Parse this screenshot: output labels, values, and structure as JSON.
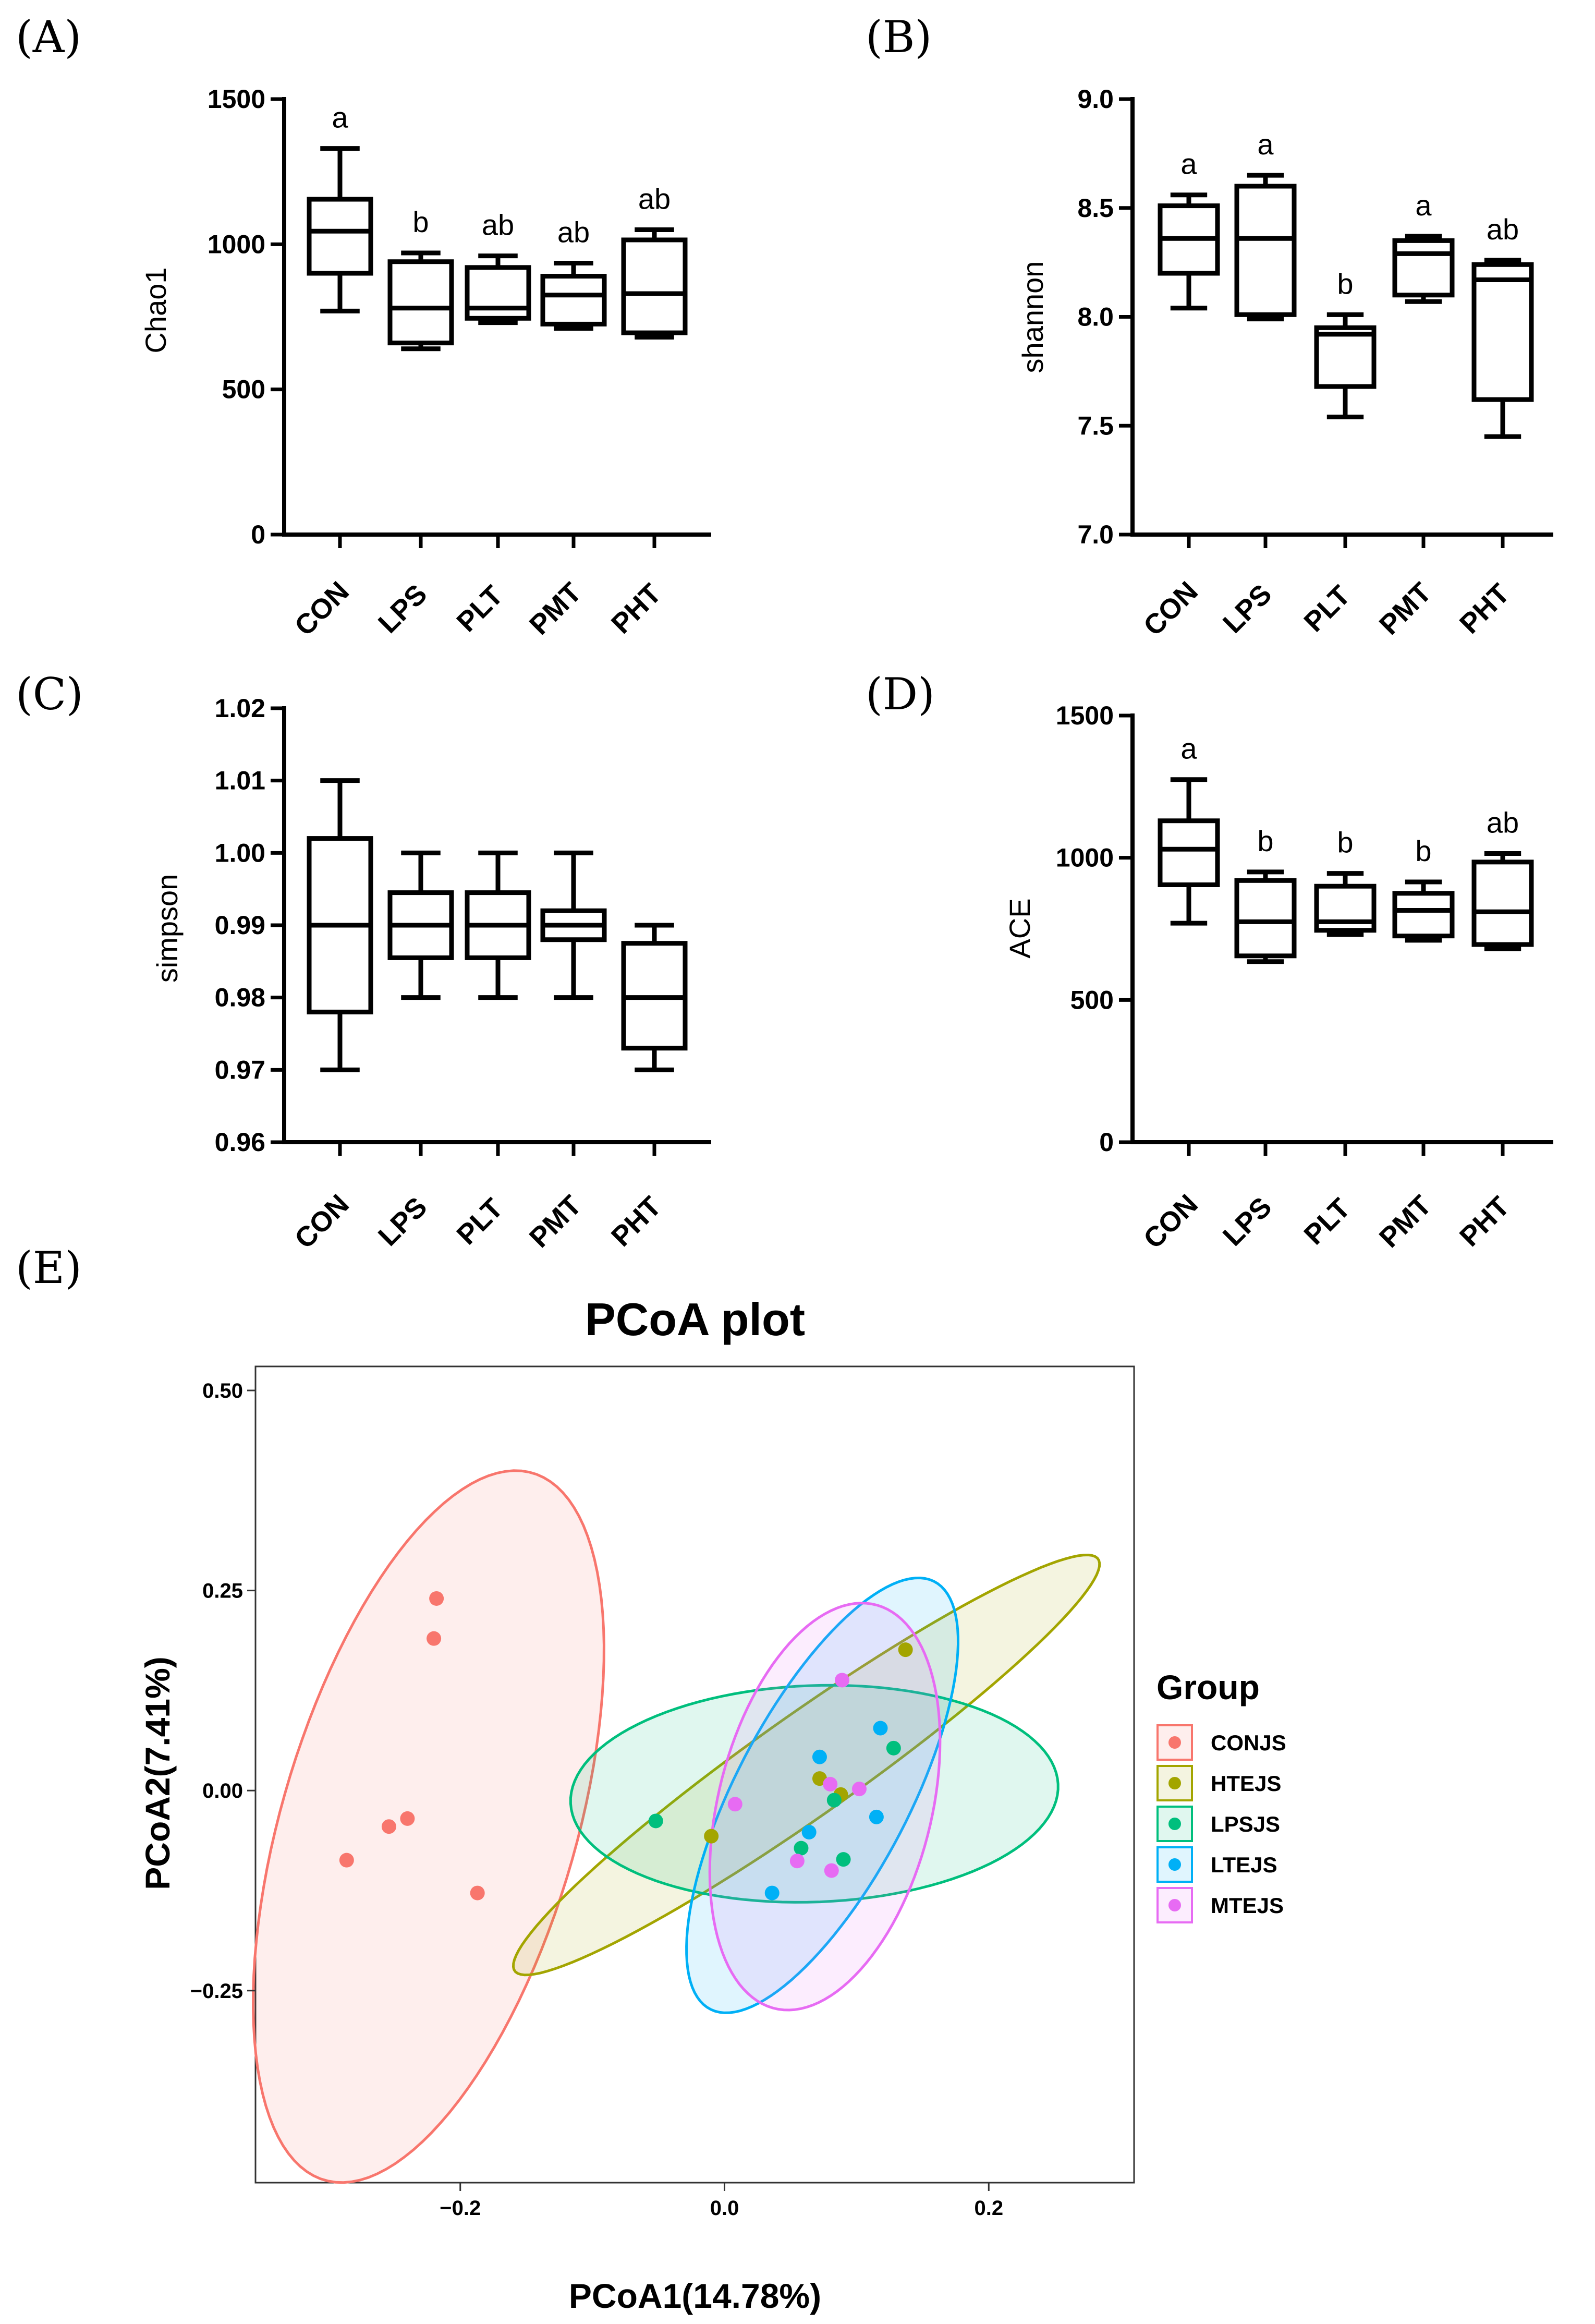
{
  "chart_data": [
    {
      "id": "A",
      "panel_label": "(A)",
      "type": "box",
      "ylabel": "Chao1",
      "ylim": [
        0,
        1500
      ],
      "yticks": [
        "0",
        "500",
        "1000",
        "1500"
      ],
      "categories": [
        "CON",
        "LPS",
        "PLT",
        "PMT",
        "PHT"
      ],
      "boxes": [
        {
          "min": 770,
          "q1": 900,
          "median": 1045,
          "q3": 1155,
          "max": 1330
        },
        {
          "min": 640,
          "q1": 660,
          "median": 780,
          "q3": 940,
          "max": 970
        },
        {
          "min": 730,
          "q1": 745,
          "median": 780,
          "q3": 920,
          "max": 960
        },
        {
          "min": 710,
          "q1": 725,
          "median": 825,
          "q3": 890,
          "max": 935
        },
        {
          "min": 680,
          "q1": 695,
          "median": 830,
          "q3": 1015,
          "max": 1050
        }
      ],
      "significance": [
        "a",
        "b",
        "ab",
        "ab",
        "ab"
      ]
    },
    {
      "id": "B",
      "panel_label": "(B)",
      "type": "box",
      "ylabel": "shannon",
      "ylim": [
        7.0,
        9.0
      ],
      "yticks": [
        "7.0",
        "7.5",
        "8.0",
        "8.5",
        "9.0"
      ],
      "categories": [
        "CON",
        "LPS",
        "PLT",
        "PMT",
        "PHT"
      ],
      "boxes": [
        {
          "min": 8.04,
          "q1": 8.2,
          "median": 8.36,
          "q3": 8.51,
          "max": 8.56
        },
        {
          "min": 7.99,
          "q1": 8.01,
          "median": 8.36,
          "q3": 8.6,
          "max": 8.65
        },
        {
          "min": 7.54,
          "q1": 7.68,
          "median": 7.92,
          "q3": 7.95,
          "max": 8.01
        },
        {
          "min": 8.07,
          "q1": 8.1,
          "median": 8.29,
          "q3": 8.35,
          "max": 8.37
        },
        {
          "min": 7.45,
          "q1": 7.62,
          "median": 8.17,
          "q3": 8.24,
          "max": 8.26
        }
      ],
      "significance": [
        "a",
        "a",
        "b",
        "a",
        "ab"
      ]
    },
    {
      "id": "C",
      "panel_label": "(C)",
      "type": "box",
      "ylabel": "simpson",
      "ylim": [
        0.96,
        1.02
      ],
      "yticks": [
        "0.96",
        "0.97",
        "0.98",
        "0.99",
        "1.00",
        "1.01",
        "1.02"
      ],
      "categories": [
        "CON",
        "LPS",
        "PLT",
        "PMT",
        "PHT"
      ],
      "boxes": [
        {
          "min": 0.97,
          "q1": 0.978,
          "median": 0.99,
          "q3": 1.002,
          "max": 1.01
        },
        {
          "min": 0.98,
          "q1": 0.9855,
          "median": 0.99,
          "q3": 0.9945,
          "max": 1.0
        },
        {
          "min": 0.98,
          "q1": 0.9855,
          "median": 0.99,
          "q3": 0.9945,
          "max": 1.0
        },
        {
          "min": 0.98,
          "q1": 0.988,
          "median": 0.99,
          "q3": 0.992,
          "max": 1.0
        },
        {
          "min": 0.97,
          "q1": 0.973,
          "median": 0.98,
          "q3": 0.9875,
          "max": 0.99
        }
      ],
      "significance": [
        "",
        "",
        "",
        "",
        ""
      ]
    },
    {
      "id": "D",
      "panel_label": "(D)",
      "type": "box",
      "ylabel": "ACE",
      "ylim": [
        0,
        1500
      ],
      "yticks": [
        "0",
        "500",
        "1000",
        "1500"
      ],
      "categories": [
        "CON",
        "LPS",
        "PLT",
        "PMT",
        "PHT"
      ],
      "boxes": [
        {
          "min": 770,
          "q1": 905,
          "median": 1030,
          "q3": 1130,
          "max": 1275
        },
        {
          "min": 635,
          "q1": 655,
          "median": 775,
          "q3": 920,
          "max": 950
        },
        {
          "min": 730,
          "q1": 745,
          "median": 775,
          "q3": 900,
          "max": 945
        },
        {
          "min": 710,
          "q1": 725,
          "median": 815,
          "q3": 875,
          "max": 915
        },
        {
          "min": 680,
          "q1": 695,
          "median": 810,
          "q3": 985,
          "max": 1015
        }
      ],
      "significance": [
        "a",
        "b",
        "b",
        "b",
        "ab"
      ]
    },
    {
      "id": "E",
      "panel_label": "(E)",
      "type": "scatter",
      "title": "PCoA plot",
      "xlabel": "PCoA1(14.78%)",
      "ylabel": "PCoA2(7.41%)",
      "xlim": [
        -0.355,
        0.31
      ],
      "ylim": [
        -0.49,
        0.53
      ],
      "xticks": [
        "-0.2",
        "0.0",
        "0.2"
      ],
      "xtick_values": [
        -0.2,
        0.0,
        0.2
      ],
      "yticks": [
        "-0.25",
        "0.00",
        "0.25",
        "0.50"
      ],
      "ytick_values": [
        -0.25,
        0.0,
        0.25,
        0.5
      ],
      "legend_title": "Group",
      "legend_position": "right",
      "groups": [
        {
          "name": "CONJS",
          "color": "#F8766D",
          "points": [
            [
              -0.218,
              0.24
            ],
            [
              -0.22,
              0.19
            ],
            [
              -0.24,
              -0.035
            ],
            [
              -0.254,
              -0.045
            ],
            [
              -0.286,
              -0.087
            ],
            [
              -0.187,
              -0.128
            ]
          ],
          "ellipse": {
            "cx": -0.224,
            "cy": -0.045,
            "a": 0.45,
            "b": 0.114,
            "angle": 81
          }
        },
        {
          "name": "HTEJS",
          "color": "#A3A500",
          "points": [
            [
              0.137,
              0.176
            ],
            [
              0.072,
              0.015
            ],
            [
              0.088,
              -0.005
            ],
            [
              -0.01,
              -0.057
            ]
          ],
          "ellipse": {
            "cx": 0.062,
            "cy": 0.032,
            "a": 0.34,
            "b": 0.05,
            "angle": 50
          }
        },
        {
          "name": "LPSJS",
          "color": "#00BF7D",
          "points": [
            [
              -0.052,
              -0.038
            ],
            [
              0.128,
              0.053
            ],
            [
              0.083,
              -0.012
            ],
            [
              0.058,
              -0.072
            ],
            [
              0.09,
              -0.086
            ]
          ],
          "ellipse": {
            "cx": 0.068,
            "cy": -0.004,
            "a": 0.185,
            "b": 0.135,
            "angle": 6
          }
        },
        {
          "name": "LTEJS",
          "color": "#00B0F6",
          "points": [
            [
              0.118,
              0.078
            ],
            [
              0.072,
              0.042
            ],
            [
              0.064,
              -0.052
            ],
            [
              0.115,
              -0.033
            ],
            [
              0.036,
              -0.128
            ]
          ],
          "ellipse": {
            "cx": 0.074,
            "cy": -0.006,
            "a": 0.282,
            "b": 0.07,
            "angle": 74
          }
        },
        {
          "name": "MTEJS",
          "color": "#E76BF3",
          "points": [
            [
              0.089,
              0.138
            ],
            [
              0.102,
              0.002
            ],
            [
              0.08,
              0.008
            ],
            [
              0.008,
              -0.017
            ],
            [
              0.055,
              -0.088
            ],
            [
              0.081,
              -0.1
            ]
          ],
          "ellipse": {
            "cx": 0.076,
            "cy": -0.02,
            "a": 0.256,
            "b": 0.082,
            "angle": 83
          }
        }
      ]
    }
  ]
}
